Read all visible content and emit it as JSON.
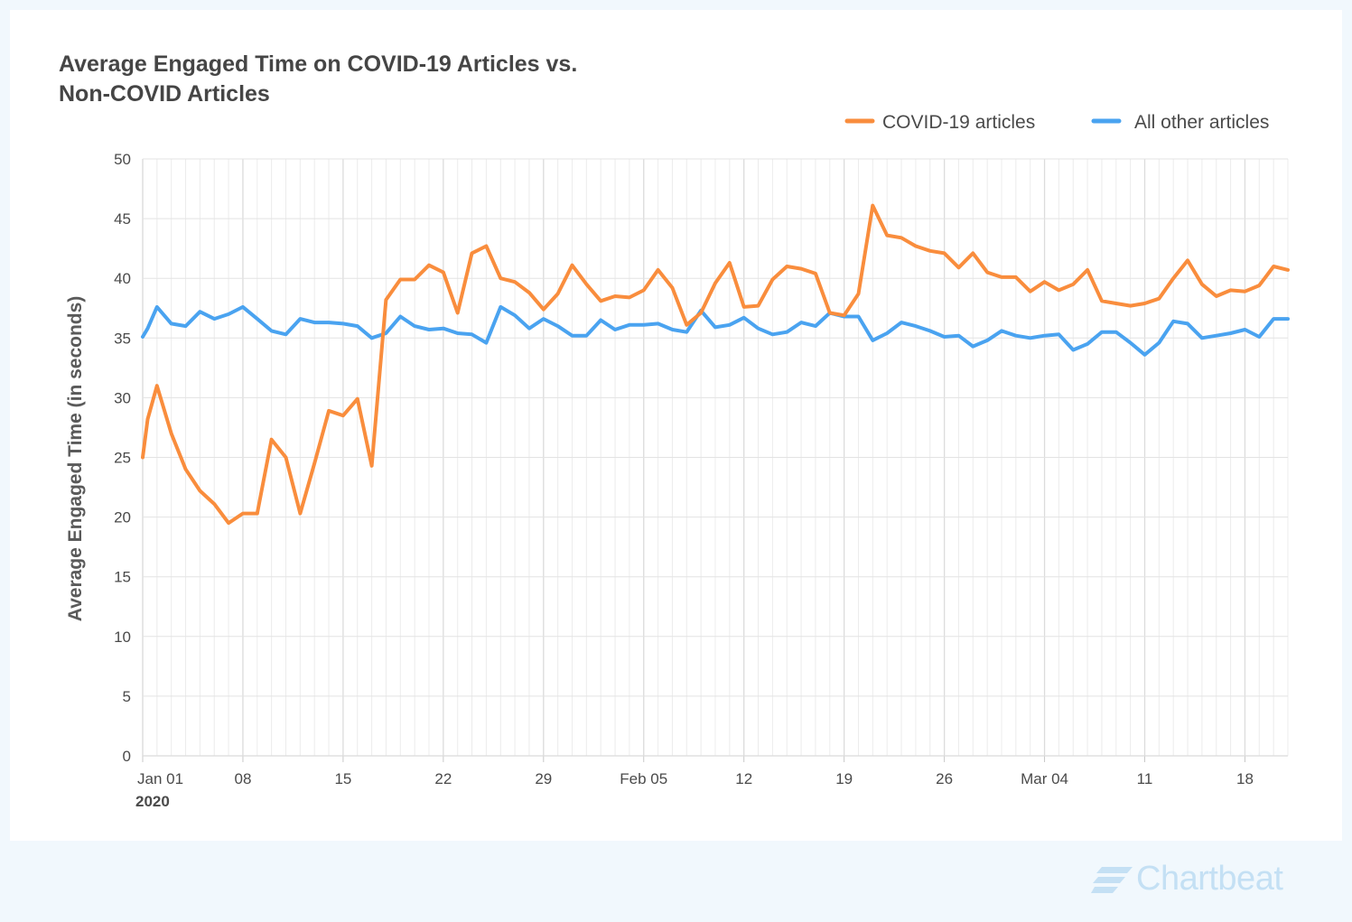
{
  "chart_data": {
    "type": "line",
    "title_lines": [
      "Average Engaged Time on COVID-19 Articles vs.",
      "Non-COVID Articles"
    ],
    "ylabel": "Average Engaged Time (in seconds)",
    "xlabel": "",
    "ylim": [
      0,
      50
    ],
    "y_ticks": [
      0,
      5,
      10,
      15,
      20,
      25,
      30,
      35,
      40,
      45,
      50
    ],
    "x_start": "2020-01-01",
    "x_end": "2020-03-21",
    "x_ticks": [
      {
        "date": "2020-01-01",
        "label": "Jan 01",
        "sublabel": "2020"
      },
      {
        "date": "2020-01-08",
        "label": "08"
      },
      {
        "date": "2020-01-15",
        "label": "15"
      },
      {
        "date": "2020-01-22",
        "label": "22"
      },
      {
        "date": "2020-01-29",
        "label": "29"
      },
      {
        "date": "2020-02-05",
        "label": "Feb 05"
      },
      {
        "date": "2020-02-12",
        "label": "12"
      },
      {
        "date": "2020-02-19",
        "label": "19"
      },
      {
        "date": "2020-02-26",
        "label": "26"
      },
      {
        "date": "2020-03-04",
        "label": "Mar 04"
      },
      {
        "date": "2020-03-11",
        "label": "11"
      },
      {
        "date": "2020-03-18",
        "label": "18"
      }
    ],
    "grid": true,
    "legend_position": "top-right",
    "series": [
      {
        "name": "COVID-19 articles",
        "color": "#f98d3d",
        "points": [
          [
            "2020-01-01",
            25.0
          ],
          [
            "2020-01-01",
            28.2
          ],
          [
            "2020-01-02",
            31.0
          ],
          [
            "2020-01-03",
            27.0
          ],
          [
            "2020-01-04",
            24.0
          ],
          [
            "2020-01-05",
            22.2
          ],
          [
            "2020-01-06",
            21.1
          ],
          [
            "2020-01-07",
            19.5
          ],
          [
            "2020-01-08",
            20.3
          ],
          [
            "2020-01-09",
            20.3
          ],
          [
            "2020-01-10",
            26.5
          ],
          [
            "2020-01-11",
            25.0
          ],
          [
            "2020-01-12",
            20.3
          ],
          [
            "2020-01-13",
            24.5
          ],
          [
            "2020-01-14",
            28.9
          ],
          [
            "2020-01-15",
            28.5
          ],
          [
            "2020-01-16",
            29.9
          ],
          [
            "2020-01-17",
            24.3
          ],
          [
            "2020-01-18",
            38.2
          ],
          [
            "2020-01-19",
            39.9
          ],
          [
            "2020-01-20",
            39.9
          ],
          [
            "2020-01-21",
            41.1
          ],
          [
            "2020-01-22",
            40.5
          ],
          [
            "2020-01-23",
            37.1
          ],
          [
            "2020-01-24",
            42.1
          ],
          [
            "2020-01-25",
            42.7
          ],
          [
            "2020-01-26",
            40.0
          ],
          [
            "2020-01-27",
            39.7
          ],
          [
            "2020-01-28",
            38.8
          ],
          [
            "2020-01-29",
            37.4
          ],
          [
            "2020-01-30",
            38.7
          ],
          [
            "2020-01-31",
            41.1
          ],
          [
            "2020-02-01",
            39.5
          ],
          [
            "2020-02-02",
            38.1
          ],
          [
            "2020-02-03",
            38.5
          ],
          [
            "2020-02-04",
            38.4
          ],
          [
            "2020-02-05",
            39.0
          ],
          [
            "2020-02-06",
            40.7
          ],
          [
            "2020-02-07",
            39.2
          ],
          [
            "2020-02-08",
            36.1
          ],
          [
            "2020-02-09",
            37.1
          ],
          [
            "2020-02-10",
            39.6
          ],
          [
            "2020-02-11",
            41.3
          ],
          [
            "2020-02-12",
            37.6
          ],
          [
            "2020-02-13",
            37.7
          ],
          [
            "2020-02-14",
            39.9
          ],
          [
            "2020-02-15",
            41.0
          ],
          [
            "2020-02-16",
            40.8
          ],
          [
            "2020-02-17",
            40.4
          ],
          [
            "2020-02-18",
            37.1
          ],
          [
            "2020-02-19",
            36.9
          ],
          [
            "2020-02-20",
            38.7
          ],
          [
            "2020-02-21",
            46.1
          ],
          [
            "2020-02-22",
            43.6
          ],
          [
            "2020-02-23",
            43.4
          ],
          [
            "2020-02-24",
            42.7
          ],
          [
            "2020-02-25",
            42.3
          ],
          [
            "2020-02-26",
            42.1
          ],
          [
            "2020-02-27",
            40.9
          ],
          [
            "2020-02-28",
            42.1
          ],
          [
            "2020-02-29",
            40.5
          ],
          [
            "2020-03-01",
            40.1
          ],
          [
            "2020-03-02",
            40.1
          ],
          [
            "2020-03-03",
            38.9
          ],
          [
            "2020-03-04",
            39.7
          ],
          [
            "2020-03-05",
            39.0
          ],
          [
            "2020-03-06",
            39.5
          ],
          [
            "2020-03-07",
            40.7
          ],
          [
            "2020-03-08",
            38.1
          ],
          [
            "2020-03-09",
            37.9
          ],
          [
            "2020-03-10",
            37.7
          ],
          [
            "2020-03-11",
            37.9
          ],
          [
            "2020-03-12",
            38.3
          ],
          [
            "2020-03-13",
            40.0
          ],
          [
            "2020-03-14",
            41.5
          ],
          [
            "2020-03-15",
            39.5
          ],
          [
            "2020-03-16",
            38.5
          ],
          [
            "2020-03-17",
            39.0
          ],
          [
            "2020-03-18",
            38.9
          ],
          [
            "2020-03-19",
            39.4
          ],
          [
            "2020-03-20",
            41.0
          ],
          [
            "2020-03-21",
            40.7
          ]
        ]
      },
      {
        "name": "All other articles",
        "color": "#4aa3f0",
        "points": [
          [
            "2020-01-01",
            35.1
          ],
          [
            "2020-01-01",
            35.8
          ],
          [
            "2020-01-02",
            37.6
          ],
          [
            "2020-01-03",
            36.2
          ],
          [
            "2020-01-04",
            36.0
          ],
          [
            "2020-01-05",
            37.2
          ],
          [
            "2020-01-06",
            36.6
          ],
          [
            "2020-01-07",
            37.0
          ],
          [
            "2020-01-08",
            37.6
          ],
          [
            "2020-01-09",
            36.6
          ],
          [
            "2020-01-10",
            35.6
          ],
          [
            "2020-01-11",
            35.3
          ],
          [
            "2020-01-12",
            36.6
          ],
          [
            "2020-01-13",
            36.3
          ],
          [
            "2020-01-14",
            36.3
          ],
          [
            "2020-01-15",
            36.2
          ],
          [
            "2020-01-16",
            36.0
          ],
          [
            "2020-01-17",
            35.0
          ],
          [
            "2020-01-18",
            35.4
          ],
          [
            "2020-01-19",
            36.8
          ],
          [
            "2020-01-20",
            36.0
          ],
          [
            "2020-01-21",
            35.7
          ],
          [
            "2020-01-22",
            35.8
          ],
          [
            "2020-01-23",
            35.4
          ],
          [
            "2020-01-24",
            35.3
          ],
          [
            "2020-01-25",
            34.6
          ],
          [
            "2020-01-26",
            37.6
          ],
          [
            "2020-01-27",
            36.9
          ],
          [
            "2020-01-28",
            35.8
          ],
          [
            "2020-01-29",
            36.6
          ],
          [
            "2020-01-30",
            36.0
          ],
          [
            "2020-01-31",
            35.2
          ],
          [
            "2020-02-01",
            35.2
          ],
          [
            "2020-02-02",
            36.5
          ],
          [
            "2020-02-03",
            35.7
          ],
          [
            "2020-02-04",
            36.1
          ],
          [
            "2020-02-05",
            36.1
          ],
          [
            "2020-02-06",
            36.2
          ],
          [
            "2020-02-07",
            35.7
          ],
          [
            "2020-02-08",
            35.5
          ],
          [
            "2020-02-09",
            37.3
          ],
          [
            "2020-02-10",
            35.9
          ],
          [
            "2020-02-11",
            36.1
          ],
          [
            "2020-02-12",
            36.7
          ],
          [
            "2020-02-13",
            35.8
          ],
          [
            "2020-02-14",
            35.3
          ],
          [
            "2020-02-15",
            35.5
          ],
          [
            "2020-02-16",
            36.3
          ],
          [
            "2020-02-17",
            36.0
          ],
          [
            "2020-02-18",
            37.1
          ],
          [
            "2020-02-19",
            36.8
          ],
          [
            "2020-02-20",
            36.8
          ],
          [
            "2020-02-21",
            34.8
          ],
          [
            "2020-02-22",
            35.4
          ],
          [
            "2020-02-23",
            36.3
          ],
          [
            "2020-02-24",
            36.0
          ],
          [
            "2020-02-25",
            35.6
          ],
          [
            "2020-02-26",
            35.1
          ],
          [
            "2020-02-27",
            35.2
          ],
          [
            "2020-02-28",
            34.3
          ],
          [
            "2020-02-29",
            34.8
          ],
          [
            "2020-03-01",
            35.6
          ],
          [
            "2020-03-02",
            35.2
          ],
          [
            "2020-03-03",
            35.0
          ],
          [
            "2020-03-04",
            35.2
          ],
          [
            "2020-03-05",
            35.3
          ],
          [
            "2020-03-06",
            34.0
          ],
          [
            "2020-03-07",
            34.5
          ],
          [
            "2020-03-08",
            35.5
          ],
          [
            "2020-03-09",
            35.5
          ],
          [
            "2020-03-10",
            34.6
          ],
          [
            "2020-03-11",
            33.6
          ],
          [
            "2020-03-12",
            34.6
          ],
          [
            "2020-03-13",
            36.4
          ],
          [
            "2020-03-14",
            36.2
          ],
          [
            "2020-03-15",
            35.0
          ],
          [
            "2020-03-16",
            35.2
          ],
          [
            "2020-03-17",
            35.4
          ],
          [
            "2020-03-18",
            35.7
          ],
          [
            "2020-03-19",
            35.1
          ],
          [
            "2020-03-20",
            36.6
          ],
          [
            "2020-03-21",
            36.6
          ]
        ]
      }
    ]
  },
  "brand": {
    "name": "Chartbeat",
    "icon": "chartbeat-logo-icon",
    "color": "#c4e0f4"
  }
}
